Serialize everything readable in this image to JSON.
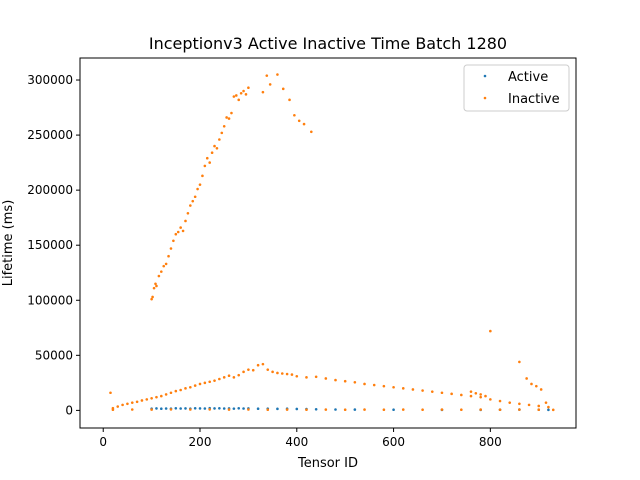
{
  "chart_data": {
    "type": "scatter",
    "title": "Inceptionv3 Active Inactive Time Batch 1280",
    "xlabel": "Tensor ID",
    "ylabel": "Lifetime (ms)",
    "xlim": [
      -48,
      977
    ],
    "ylim": [
      -16000,
      320000
    ],
    "xticks": [
      0,
      200,
      400,
      600,
      800
    ],
    "yticks": [
      0,
      50000,
      100000,
      150000,
      200000,
      250000,
      300000
    ],
    "xtick_labels": [
      "0",
      "200",
      "400",
      "600",
      "800"
    ],
    "ytick_labels": [
      "0",
      "50000",
      "100000",
      "150000",
      "200000",
      "250000",
      "300000"
    ],
    "grid": false,
    "legend_position": "top-right",
    "series": [
      {
        "name": "Active",
        "color": "#1f77b4",
        "points": [
          [
            100,
            1500
          ],
          [
            110,
            1800
          ],
          [
            120,
            1500
          ],
          [
            130,
            1700
          ],
          [
            140,
            1600
          ],
          [
            150,
            1900
          ],
          [
            160,
            1700
          ],
          [
            170,
            1800
          ],
          [
            180,
            1600
          ],
          [
            190,
            1900
          ],
          [
            200,
            1800
          ],
          [
            210,
            1700
          ],
          [
            220,
            2000
          ],
          [
            230,
            1800
          ],
          [
            240,
            1900
          ],
          [
            250,
            1700
          ],
          [
            260,
            1800
          ],
          [
            270,
            1600
          ],
          [
            280,
            1900
          ],
          [
            290,
            1700
          ],
          [
            300,
            1800
          ],
          [
            320,
            1500
          ],
          [
            340,
            1600
          ],
          [
            360,
            1400
          ],
          [
            380,
            1500
          ],
          [
            400,
            1300
          ],
          [
            420,
            1200
          ],
          [
            440,
            1000
          ],
          [
            480,
            800
          ],
          [
            520,
            700
          ],
          [
            600,
            600
          ],
          [
            700,
            500
          ],
          [
            780,
            500
          ],
          [
            820,
            600
          ],
          [
            860,
            700
          ],
          [
            900,
            600
          ],
          [
            920,
            500
          ]
        ]
      },
      {
        "name": "Inactive",
        "color": "#ff7f0e",
        "points": [
          [
            15,
            16000
          ],
          [
            20,
            2000
          ],
          [
            30,
            3500
          ],
          [
            40,
            5000
          ],
          [
            50,
            6000
          ],
          [
            60,
            7000
          ],
          [
            70,
            7800
          ],
          [
            80,
            9000
          ],
          [
            90,
            10000
          ],
          [
            100,
            11000
          ],
          [
            110,
            12000
          ],
          [
            120,
            13000
          ],
          [
            130,
            14500
          ],
          [
            140,
            16000
          ],
          [
            150,
            17500
          ],
          [
            160,
            18500
          ],
          [
            170,
            20000
          ],
          [
            180,
            21000
          ],
          [
            190,
            22500
          ],
          [
            200,
            24000
          ],
          [
            210,
            25000
          ],
          [
            220,
            26000
          ],
          [
            230,
            27000
          ],
          [
            240,
            28500
          ],
          [
            250,
            30000
          ],
          [
            260,
            31500
          ],
          [
            270,
            30000
          ],
          [
            280,
            32000
          ],
          [
            290,
            35000
          ],
          [
            300,
            37000
          ],
          [
            310,
            36500
          ],
          [
            320,
            41000
          ],
          [
            330,
            42000
          ],
          [
            340,
            37000
          ],
          [
            350,
            35000
          ],
          [
            360,
            34000
          ],
          [
            370,
            33500
          ],
          [
            380,
            33000
          ],
          [
            390,
            32500
          ],
          [
            400,
            31000
          ],
          [
            420,
            30000
          ],
          [
            440,
            30500
          ],
          [
            460,
            29000
          ],
          [
            480,
            27500
          ],
          [
            500,
            26500
          ],
          [
            520,
            25500
          ],
          [
            540,
            24000
          ],
          [
            560,
            23000
          ],
          [
            580,
            22000
          ],
          [
            600,
            21000
          ],
          [
            620,
            20000
          ],
          [
            640,
            19000
          ],
          [
            660,
            18000
          ],
          [
            680,
            17000
          ],
          [
            700,
            16000
          ],
          [
            720,
            15000
          ],
          [
            740,
            14000
          ],
          [
            760,
            13000
          ],
          [
            780,
            12000
          ],
          [
            800,
            10000
          ],
          [
            820,
            8500
          ],
          [
            840,
            7000
          ],
          [
            860,
            6000
          ],
          [
            880,
            5000
          ],
          [
            900,
            4000
          ],
          [
            920,
            3000
          ],
          [
            760,
            17000
          ],
          [
            770,
            15500
          ],
          [
            780,
            14500
          ],
          [
            790,
            13000
          ],
          [
            800,
            72000
          ],
          [
            860,
            44000
          ],
          [
            875,
            29000
          ],
          [
            885,
            24000
          ],
          [
            895,
            22000
          ],
          [
            905,
            19000
          ],
          [
            915,
            7000
          ],
          [
            100,
            101000
          ],
          [
            102,
            103000
          ],
          [
            105,
            111000
          ],
          [
            108,
            115000
          ],
          [
            110,
            113000
          ],
          [
            115,
            122000
          ],
          [
            120,
            126000
          ],
          [
            125,
            131000
          ],
          [
            130,
            133000
          ],
          [
            135,
            140000
          ],
          [
            140,
            147000
          ],
          [
            145,
            154000
          ],
          [
            150,
            160000
          ],
          [
            155,
            162000
          ],
          [
            160,
            166000
          ],
          [
            165,
            163000
          ],
          [
            170,
            172000
          ],
          [
            175,
            179000
          ],
          [
            180,
            186000
          ],
          [
            185,
            190000
          ],
          [
            190,
            194000
          ],
          [
            195,
            201000
          ],
          [
            200,
            205000
          ],
          [
            205,
            213000
          ],
          [
            210,
            222000
          ],
          [
            215,
            229000
          ],
          [
            220,
            225000
          ],
          [
            225,
            234000
          ],
          [
            230,
            240000
          ],
          [
            235,
            238000
          ],
          [
            240,
            246000
          ],
          [
            245,
            252000
          ],
          [
            250,
            258000
          ],
          [
            255,
            266000
          ],
          [
            260,
            265000
          ],
          [
            265,
            270000
          ],
          [
            270,
            285000
          ],
          [
            275,
            286000
          ],
          [
            280,
            282000
          ],
          [
            285,
            288000
          ],
          [
            290,
            290000
          ],
          [
            295,
            287000
          ],
          [
            300,
            293000
          ],
          [
            330,
            289000
          ],
          [
            338,
            304000
          ],
          [
            345,
            296000
          ],
          [
            360,
            305000
          ],
          [
            372,
            292000
          ],
          [
            385,
            282000
          ],
          [
            395,
            268000
          ],
          [
            405,
            263000
          ],
          [
            415,
            260000
          ],
          [
            430,
            253000
          ],
          [
            20,
            600
          ],
          [
            60,
            800
          ],
          [
            100,
            700
          ],
          [
            140,
            900
          ],
          [
            180,
            800
          ],
          [
            220,
            900
          ],
          [
            260,
            700
          ],
          [
            300,
            800
          ],
          [
            340,
            600
          ],
          [
            380,
            700
          ],
          [
            420,
            600
          ],
          [
            460,
            700
          ],
          [
            500,
            600
          ],
          [
            540,
            700
          ],
          [
            580,
            600
          ],
          [
            620,
            700
          ],
          [
            660,
            600
          ],
          [
            700,
            700
          ],
          [
            740,
            600
          ],
          [
            780,
            700
          ],
          [
            820,
            600
          ],
          [
            860,
            700
          ],
          [
            900,
            600
          ],
          [
            930,
            500
          ]
        ]
      }
    ]
  }
}
